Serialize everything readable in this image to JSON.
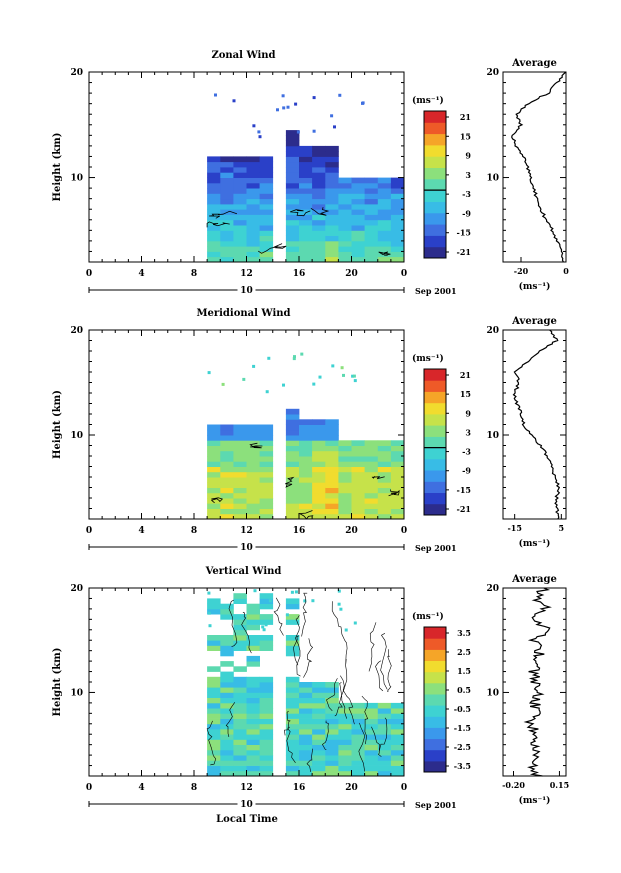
{
  "date_label": "Sep 2001",
  "day_label": "10",
  "xlabel": "Local Time",
  "x_ticks": [
    "0",
    "4",
    "8",
    "12",
    "16",
    "20",
    "0"
  ],
  "colorbar_unit": "(ms⁻¹)",
  "profile_title": "Average",
  "profile_unit": "(ms⁻¹)",
  "ylabel": "Height (km)",
  "chart_data": [
    {
      "type": "heatmap",
      "title": "Zonal Wind",
      "xlabel": "",
      "ylabel": "Height (km)",
      "x_range": [
        0,
        24
      ],
      "ylim": [
        2,
        20
      ],
      "y_ticks": [
        "20",
        "10"
      ],
      "colorbar": {
        "unit": "(ms⁻¹)",
        "labels": [
          "21",
          "15",
          "9",
          "3",
          "-3",
          "-9",
          "-15",
          "-21"
        ],
        "range": [
          -24,
          24
        ],
        "zero_line": true
      },
      "colors": [
        "#2c2c8c",
        "#2a40c8",
        "#3f6fe0",
        "#3a98ec",
        "#38bce6",
        "#3ed2d2",
        "#5cd9b0",
        "#8ce07c",
        "#c6e24a",
        "#f1dc2e",
        "#f5a528",
        "#ee5a28",
        "#d8262a"
      ],
      "data_coverage": "data from about 9 to 24 h local time, gap near 13.5 to 14.5 h",
      "profile": {
        "title": "Average",
        "x_ticks": [
          "-20",
          "0"
        ],
        "xlim": [
          -28,
          0
        ],
        "unit": "(ms⁻¹)",
        "heights": [
          2,
          3,
          4,
          5,
          6,
          7,
          8,
          9,
          10,
          11,
          12,
          13,
          14,
          15,
          16,
          17,
          18,
          19,
          20
        ],
        "values": [
          -1,
          -2,
          -4,
          -6,
          -9,
          -11,
          -13,
          -14,
          -16,
          -17,
          -19,
          -22,
          -24,
          -20,
          -22,
          -17,
          -8,
          -4,
          0
        ]
      }
    },
    {
      "type": "heatmap",
      "title": "Meridional Wind",
      "xlabel": "",
      "ylabel": "Height (km)",
      "x_range": [
        0,
        24
      ],
      "ylim": [
        2,
        20
      ],
      "y_ticks": [
        "20",
        "10"
      ],
      "colorbar": {
        "unit": "(ms⁻¹)",
        "labels": [
          "21",
          "15",
          "9",
          "3",
          "-3",
          "-9",
          "-15",
          "-21"
        ],
        "range": [
          -24,
          24
        ],
        "zero_line": true
      },
      "colors": [
        "#2c2c8c",
        "#2a40c8",
        "#3f6fe0",
        "#3a98ec",
        "#38bce6",
        "#3ed2d2",
        "#5cd9b0",
        "#8ce07c",
        "#c6e24a",
        "#f1dc2e",
        "#f5a528",
        "#ee5a28",
        "#d8262a"
      ],
      "data_coverage": "data from about 9 to 24 h local time, gap near 13.5 to 14.5 h",
      "profile": {
        "title": "Average",
        "x_ticks": [
          "-15",
          "5"
        ],
        "xlim": [
          -20,
          7
        ],
        "unit": "(ms⁻¹)",
        "heights": [
          2,
          3,
          4,
          5,
          6,
          7,
          8,
          9,
          10,
          11,
          12,
          13,
          14,
          15,
          16,
          17,
          18,
          19,
          20
        ],
        "values": [
          4,
          3,
          3,
          4,
          2,
          1,
          -1,
          -4,
          -8,
          -11,
          -12,
          -14,
          -15,
          -13,
          -15,
          -9,
          -4,
          3,
          0
        ]
      }
    },
    {
      "type": "heatmap",
      "title": "Vertical Wind",
      "xlabel": "Local Time",
      "ylabel": "Height (km)",
      "x_range": [
        0,
        24
      ],
      "ylim": [
        2,
        20
      ],
      "y_ticks": [
        "20",
        "10"
      ],
      "colorbar": {
        "unit": "(ms⁻¹)",
        "labels": [
          "3.5",
          "2.5",
          "1.5",
          "0.5",
          "-0.5",
          "-1.5",
          "-2.5",
          "-3.5"
        ],
        "range": [
          -4,
          4
        ],
        "zero_line": false
      },
      "colors": [
        "#2c2c8c",
        "#2a40c8",
        "#3f6fe0",
        "#3a98ec",
        "#38bce6",
        "#3ed2d2",
        "#5cd9b0",
        "#8ce07c",
        "#c6e24a",
        "#f1dc2e",
        "#f5a528",
        "#ee5a28",
        "#d8262a"
      ],
      "data_coverage": "data from about 9 to 24 h local time, gap near 13.5 to 14.5 h",
      "profile": {
        "title": "Average",
        "x_ticks": [
          "-0.20",
          "0.15"
        ],
        "xlim": [
          -0.28,
          0.2
        ],
        "unit": "(ms⁻¹)",
        "heights": [
          2,
          3,
          4,
          5,
          6,
          7,
          8,
          9,
          10,
          11,
          12,
          13,
          14,
          15,
          16,
          17,
          18,
          19,
          20
        ],
        "values": [
          -0.02,
          -0.06,
          -0.03,
          -0.05,
          -0.01,
          -0.08,
          -0.02,
          -0.04,
          0.01,
          -0.03,
          -0.05,
          -0.02,
          0.0,
          -0.04,
          0.06,
          -0.08,
          0.05,
          -0.02,
          0.03
        ]
      }
    }
  ]
}
